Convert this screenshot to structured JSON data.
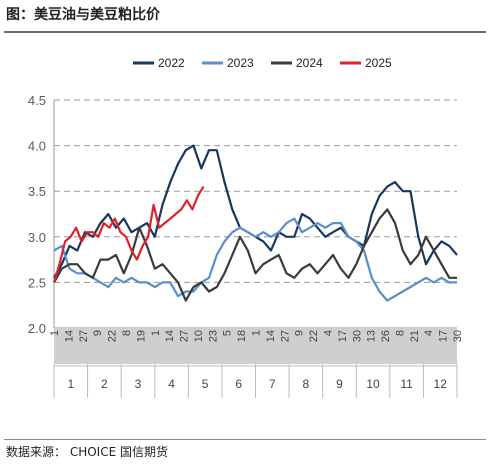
{
  "title": "图：美豆油与美豆粕比价",
  "source": "数据来源： CHOICE 国信期货",
  "chart_data": {
    "type": "line",
    "xlabel": "",
    "ylabel": "",
    "ylim": [
      2.0,
      4.5
    ],
    "yticks": [
      "2.0",
      "2.5",
      "3.0",
      "3.5",
      "4.0",
      "4.5"
    ],
    "grid": "dashed horizontal",
    "legend_position": "top-center",
    "date_ticks": [
      "1",
      "14",
      "27",
      "9",
      "22",
      "8",
      "19",
      "1",
      "14",
      "27",
      "10",
      "23",
      "5",
      "18",
      "1",
      "14",
      "27",
      "9",
      "22",
      "4",
      "17",
      "30",
      "13",
      "26",
      "8",
      "21",
      "4",
      "17",
      "30"
    ],
    "months": [
      "1",
      "2",
      "3",
      "4",
      "5",
      "6",
      "7",
      "8",
      "9",
      "10",
      "11",
      "12"
    ],
    "x_unit": "day of year (1-365)",
    "series": [
      {
        "name": "2022",
        "color": "#17375e",
        "x": [
          1,
          8,
          15,
          22,
          29,
          36,
          43,
          50,
          57,
          64,
          71,
          78,
          85,
          92,
          99,
          106,
          113,
          120,
          127,
          134,
          141,
          148,
          155,
          162,
          169,
          176,
          183,
          190,
          197,
          204,
          211,
          218,
          225,
          232,
          239,
          246,
          253,
          260,
          267,
          274,
          281,
          288,
          295,
          302,
          309,
          316,
          323,
          330,
          337,
          344,
          351,
          358,
          365
        ],
        "values": [
          2.55,
          2.7,
          2.9,
          2.85,
          3.05,
          3.0,
          3.15,
          3.25,
          3.1,
          3.2,
          3.05,
          3.1,
          3.15,
          3.0,
          3.35,
          3.6,
          3.8,
          3.95,
          4.0,
          3.75,
          3.95,
          3.95,
          3.6,
          3.3,
          3.1,
          3.05,
          3.0,
          2.95,
          2.85,
          3.05,
          3.0,
          3.0,
          3.25,
          3.2,
          3.1,
          3.0,
          3.05,
          3.1,
          3.0,
          2.95,
          2.9,
          3.25,
          3.45,
          3.55,
          3.6,
          3.5,
          3.5,
          3.0,
          2.7,
          2.85,
          2.95,
          2.9,
          2.8
        ]
      },
      {
        "name": "2023",
        "color": "#5b8fc9",
        "x": [
          1,
          8,
          15,
          22,
          29,
          36,
          43,
          50,
          57,
          64,
          71,
          78,
          85,
          92,
          99,
          106,
          113,
          120,
          127,
          134,
          141,
          148,
          155,
          162,
          169,
          176,
          183,
          190,
          197,
          204,
          211,
          218,
          225,
          232,
          239,
          246,
          253,
          260,
          267,
          274,
          281,
          288,
          295,
          302,
          309,
          316,
          323,
          330,
          337,
          344,
          351,
          358,
          365
        ],
        "values": [
          2.85,
          2.9,
          2.65,
          2.6,
          2.6,
          2.55,
          2.5,
          2.45,
          2.55,
          2.5,
          2.55,
          2.5,
          2.5,
          2.45,
          2.5,
          2.5,
          2.35,
          2.4,
          2.4,
          2.5,
          2.55,
          2.8,
          2.95,
          3.05,
          3.1,
          3.05,
          3.0,
          3.05,
          3.0,
          3.05,
          3.15,
          3.2,
          3.05,
          3.1,
          3.15,
          3.1,
          3.15,
          3.15,
          3.0,
          2.95,
          2.85,
          2.55,
          2.4,
          2.3,
          2.35,
          2.4,
          2.45,
          2.5,
          2.55,
          2.5,
          2.55,
          2.5,
          2.5
        ]
      },
      {
        "name": "2024",
        "color": "#3a3a3a",
        "x": [
          1,
          8,
          15,
          22,
          29,
          36,
          43,
          50,
          57,
          64,
          71,
          78,
          85,
          92,
          99,
          106,
          113,
          120,
          127,
          134,
          141,
          148,
          155,
          162,
          169,
          176,
          183,
          190,
          197,
          204,
          211,
          218,
          225,
          232,
          239,
          246,
          253,
          260,
          267,
          274,
          281,
          288,
          295,
          302,
          309,
          316,
          323,
          330,
          337,
          344,
          351,
          358,
          365
        ],
        "values": [
          2.5,
          2.65,
          2.7,
          2.7,
          2.6,
          2.55,
          2.75,
          2.75,
          2.8,
          2.6,
          2.8,
          3.1,
          2.9,
          2.65,
          2.7,
          2.6,
          2.5,
          2.3,
          2.45,
          2.5,
          2.4,
          2.45,
          2.6,
          2.8,
          3.0,
          2.85,
          2.6,
          2.7,
          2.75,
          2.8,
          2.6,
          2.55,
          2.65,
          2.7,
          2.6,
          2.7,
          2.8,
          2.65,
          2.55,
          2.7,
          2.9,
          3.05,
          3.2,
          3.3,
          3.15,
          2.85,
          2.7,
          2.8,
          3.0,
          2.85,
          2.7,
          2.55,
          2.55
        ]
      },
      {
        "name": "2025",
        "color": "#e0202a",
        "x": [
          1,
          6,
          11,
          16,
          21,
          26,
          31,
          36,
          41,
          46,
          51,
          56,
          61,
          66,
          71,
          76,
          81,
          86,
          91,
          96,
          101,
          106,
          111,
          116,
          121,
          126,
          131,
          136
        ],
        "values": [
          2.5,
          2.7,
          2.95,
          3.0,
          3.1,
          2.95,
          3.05,
          3.05,
          3.0,
          3.15,
          3.1,
          3.2,
          3.05,
          3.0,
          2.85,
          2.75,
          2.9,
          3.0,
          3.35,
          3.1,
          3.15,
          3.2,
          3.25,
          3.3,
          3.4,
          3.3,
          3.45,
          3.55
        ]
      }
    ]
  }
}
